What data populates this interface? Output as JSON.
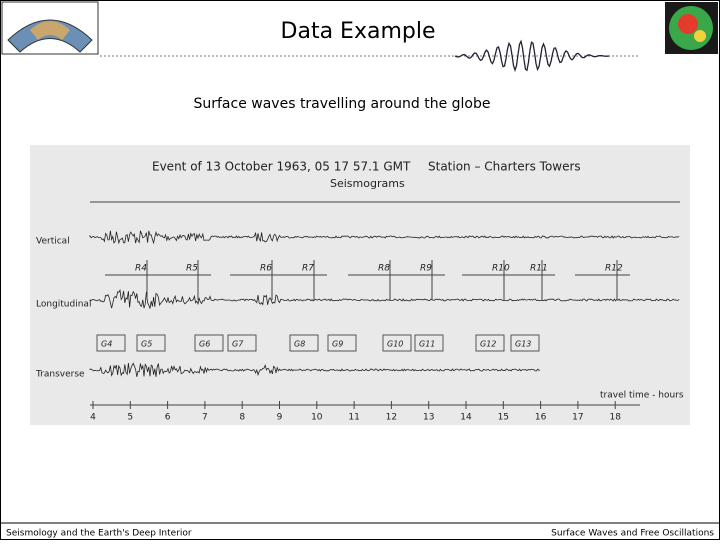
{
  "header": {
    "title": "Data Example",
    "subtitle": "Surface waves travelling around the globe"
  },
  "figure": {
    "event": "Event of 13 October 1963, 05 17 57.1 GMT",
    "station": "Station – Charters Towers",
    "heading": "Seismograms",
    "traces": [
      "Vertical",
      "Longitudinal",
      "Transverse"
    ],
    "rayleigh_labels": [
      "R4",
      "R5",
      "R6",
      "R7",
      "R8",
      "R9",
      "R10",
      "R11",
      "R12"
    ],
    "love_labels": [
      "G4",
      "G5",
      "G6",
      "G7",
      "G8",
      "G9",
      "G10",
      "G11",
      "G12",
      "G13"
    ],
    "axis_label": "travel time - hours",
    "axis_ticks": [
      4,
      5,
      6,
      7,
      8,
      9,
      10,
      11,
      12,
      13,
      14,
      15,
      16,
      17,
      18
    ]
  },
  "footer": {
    "left": "Seismology and the Earth's Deep Interior",
    "right": "Surface Waves and Free Oscillations"
  }
}
